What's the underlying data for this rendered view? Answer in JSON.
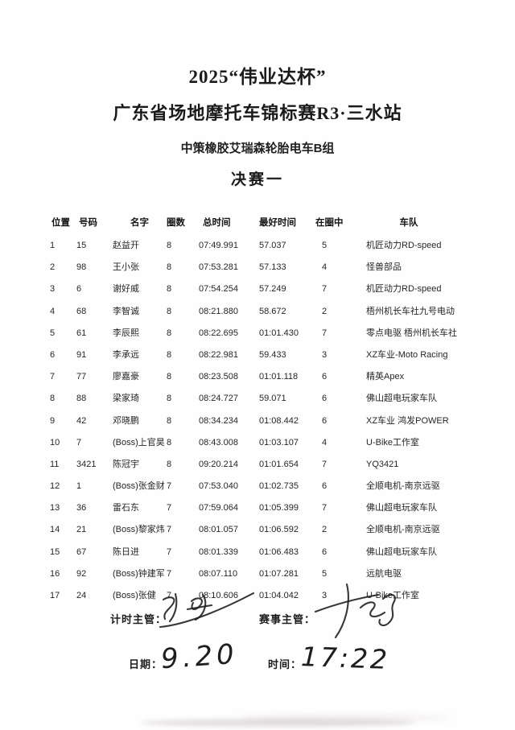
{
  "titles": {
    "cup": "2025“伟业达杯”",
    "championship": "广东省场地摩托车锦标赛R3·三水站",
    "group": "中策橡胶艾瑞森轮胎电车B组",
    "session": "决赛一"
  },
  "table": {
    "headers": [
      "位置",
      "号码",
      "名字",
      "圈数",
      "总时间",
      "最好时间",
      "在圈中",
      "车队"
    ],
    "rows": [
      [
        "1",
        "15",
        "赵益开",
        "8",
        "07:49.991",
        "57.037",
        "5",
        "机匠动力RD-speed"
      ],
      [
        "2",
        "98",
        "王小张",
        "8",
        "07:53.281",
        "57.133",
        "4",
        "怪兽部品"
      ],
      [
        "3",
        "6",
        "谢好威",
        "8",
        "07:54.254",
        "57.249",
        "7",
        "机匠动力RD-speed"
      ],
      [
        "4",
        "68",
        "李智诚",
        "8",
        "08:21.880",
        "58.672",
        "2",
        "梧州机长车社九号电动"
      ],
      [
        "5",
        "61",
        "李辰熙",
        "8",
        "08:22.695",
        "01:01.430",
        "7",
        "零点电驱 梧州机长车社"
      ],
      [
        "6",
        "91",
        "李承远",
        "8",
        "08:22.981",
        "59.433",
        "3",
        "XZ车业-Moto Racing"
      ],
      [
        "7",
        "77",
        "廖嘉豪",
        "8",
        "08:23.508",
        "01:01.118",
        "6",
        "精英Apex"
      ],
      [
        "8",
        "88",
        "梁家琦",
        "8",
        "08:24.727",
        "59.071",
        "6",
        "佛山超电玩家车队"
      ],
      [
        "9",
        "42",
        "邓晓鹏",
        "8",
        "08:34.234",
        "01:08.442",
        "6",
        "XZ车业 鸿发POWER"
      ],
      [
        "10",
        "7",
        "(Boss)上官昊",
        "8",
        "08:43.008",
        "01:03.107",
        "4",
        "U-Bike工作室"
      ],
      [
        "11",
        "3421",
        "陈冠宇",
        "8",
        "09:20.214",
        "01:01.654",
        "7",
        "YQ3421"
      ],
      [
        "12",
        "1",
        "(Boss)张金财",
        "7",
        "07:53.040",
        "01:02.735",
        "6",
        "全顺电机-南京远驱"
      ],
      [
        "13",
        "36",
        "雷石东",
        "7",
        "07:59.064",
        "01:05.399",
        "7",
        "佛山超电玩家车队"
      ],
      [
        "14",
        "21",
        "(Boss)黎家炜",
        "7",
        "08:01.057",
        "01:06.592",
        "2",
        "全顺电机-南京远驱"
      ],
      [
        "15",
        "67",
        "陈日进",
        "7",
        "08:01.339",
        "01:06.483",
        "6",
        "佛山超电玩家车队"
      ],
      [
        "16",
        "92",
        "(Boss)钟建军",
        "7",
        "08:07.110",
        "01:07.281",
        "5",
        "远航电驱"
      ],
      [
        "17",
        "24",
        "(Boss)张健",
        "7",
        "08:10.606",
        "01:04.042",
        "3",
        "U-Bike工作室"
      ]
    ]
  },
  "footer": {
    "timing_label": "计时主管：",
    "race_label": "赛事主管：",
    "date_label": "日期：",
    "time_label": "时间：",
    "date_value": "9.20",
    "time_value": "17:22"
  }
}
